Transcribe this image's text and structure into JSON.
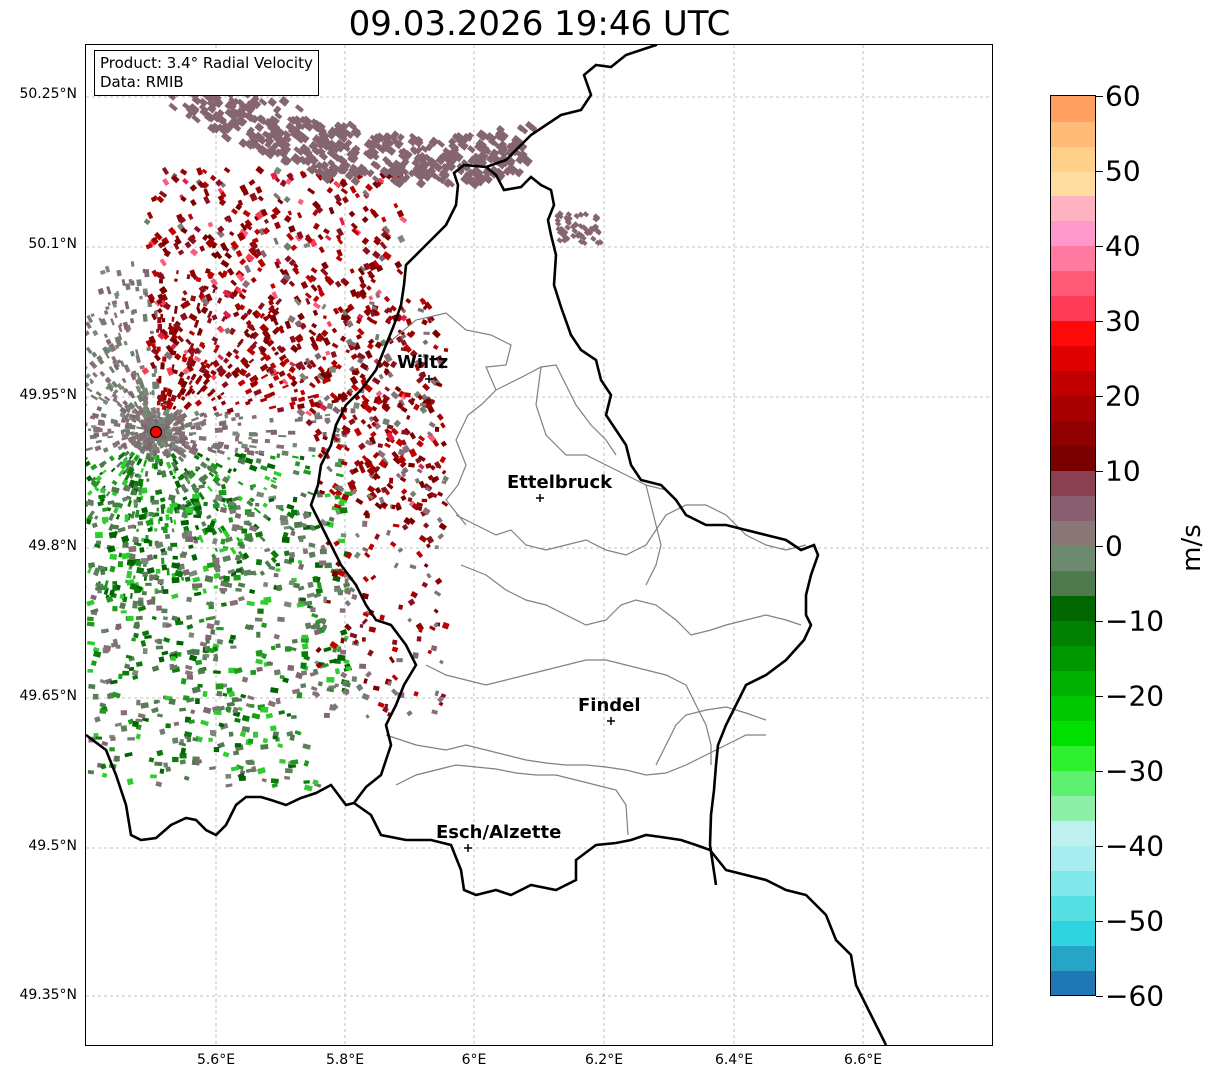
{
  "title": "09.03.2026 19:46 UTC",
  "info": {
    "product": "Product: 3.4° Radial Velocity",
    "source": "Data: RMIB"
  },
  "lat_labels": [
    "50.25°N",
    "50.1°N",
    "49.95°N",
    "49.8°N",
    "49.65°N",
    "49.5°N",
    "49.35°N"
  ],
  "lon_labels": [
    "5.6°E",
    "5.8°E",
    "6°E",
    "6.2°E",
    "6.4°E",
    "6.6°E"
  ],
  "cities": [
    {
      "name": "Wiltz"
    },
    {
      "name": "Ettelbruck"
    },
    {
      "name": "Findel"
    },
    {
      "name": "Esch/Alzette"
    }
  ],
  "radar_site_color": "#ff0000",
  "colorbar": {
    "unit": "m/s",
    "ticks": [
      "60",
      "50",
      "40",
      "30",
      "20",
      "10",
      "0",
      "−10",
      "−20",
      "−30",
      "−40",
      "−50",
      "−60"
    ],
    "min": -60,
    "max": 60,
    "colors": [
      "#1f78b4",
      "#26a5c8",
      "#2fd4e0",
      "#55e0e4",
      "#80e8ea",
      "#a8eef0",
      "#bff0f0",
      "#8ef0a8",
      "#5ef070",
      "#2ef02e",
      "#00e000",
      "#00c800",
      "#00b000",
      "#009800",
      "#007f00",
      "#006600",
      "#4e7a4e",
      "#6e8a6e",
      "#8a7878",
      "#8a6070",
      "#8a4050",
      "#7a0000",
      "#900000",
      "#a80000",
      "#c00000",
      "#e00000",
      "#ff0a0a",
      "#ff3a55",
      "#ff5a78",
      "#ff7aa0",
      "#ff99cc",
      "#ffb3c0",
      "#ffdca0",
      "#ffd08a",
      "#ffbb77",
      "#ffa060"
    ],
    "zero_band": "#6f8a6f"
  },
  "map": {
    "lat_range": [
      49.28,
      50.32
    ],
    "lon_range": [
      5.4,
      6.8
    ]
  }
}
